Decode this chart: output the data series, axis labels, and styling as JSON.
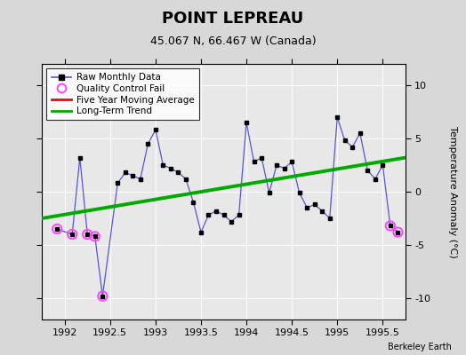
{
  "title": "POINT LEPREAU",
  "subtitle": "45.067 N, 66.467 W (Canada)",
  "ylabel": "Temperature Anomaly (°C)",
  "credit": "Berkeley Earth",
  "xlim": [
    1991.75,
    1995.75
  ],
  "ylim": [
    -12,
    12
  ],
  "xticks": [
    1992,
    1992.5,
    1993,
    1993.5,
    1994,
    1994.5,
    1995,
    1995.5
  ],
  "yticks": [
    -10,
    -5,
    0,
    5,
    10
  ],
  "bg_color": "#d8d8d8",
  "plot_bg_color": "#e8e8e8",
  "raw_x": [
    1991.917,
    1992.083,
    1992.167,
    1992.25,
    1992.333,
    1992.417,
    1992.583,
    1992.667,
    1992.75,
    1992.833,
    1992.917,
    1993.0,
    1993.083,
    1993.167,
    1993.25,
    1993.333,
    1993.417,
    1993.5,
    1993.583,
    1993.667,
    1993.75,
    1993.833,
    1993.917,
    1994.0,
    1994.083,
    1994.167,
    1994.25,
    1994.333,
    1994.417,
    1994.5,
    1994.583,
    1994.667,
    1994.75,
    1994.833,
    1994.917,
    1995.0,
    1995.083,
    1995.167,
    1995.25,
    1995.333,
    1995.417,
    1995.5,
    1995.583,
    1995.667
  ],
  "raw_y": [
    -3.5,
    -4.0,
    3.2,
    -4.0,
    -4.2,
    -9.8,
    0.8,
    1.8,
    1.5,
    1.2,
    4.5,
    5.8,
    2.5,
    2.2,
    1.8,
    1.2,
    -1.0,
    -3.8,
    -2.2,
    -1.8,
    -2.2,
    -2.8,
    -2.2,
    6.5,
    2.8,
    3.2,
    -0.1,
    2.5,
    2.2,
    2.8,
    -0.1,
    -1.5,
    -1.2,
    -1.8,
    -2.5,
    7.0,
    4.8,
    4.2,
    5.5,
    2.0,
    1.2,
    2.5,
    -3.2,
    -3.8
  ],
  "qc_fail_x": [
    1991.917,
    1992.083,
    1992.25,
    1992.333,
    1992.417,
    1995.583,
    1995.667
  ],
  "qc_fail_y": [
    -3.5,
    -4.0,
    -4.0,
    -4.2,
    -9.8,
    -3.2,
    -3.8
  ],
  "trend_x": [
    1991.75,
    1995.75
  ],
  "trend_y": [
    -2.5,
    3.2
  ],
  "raw_line_color": "#5555dd",
  "dot_color": "#000000",
  "qc_color": "#ff44ff",
  "trend_color": "#00aa00",
  "mavg_color": "#ff0000"
}
